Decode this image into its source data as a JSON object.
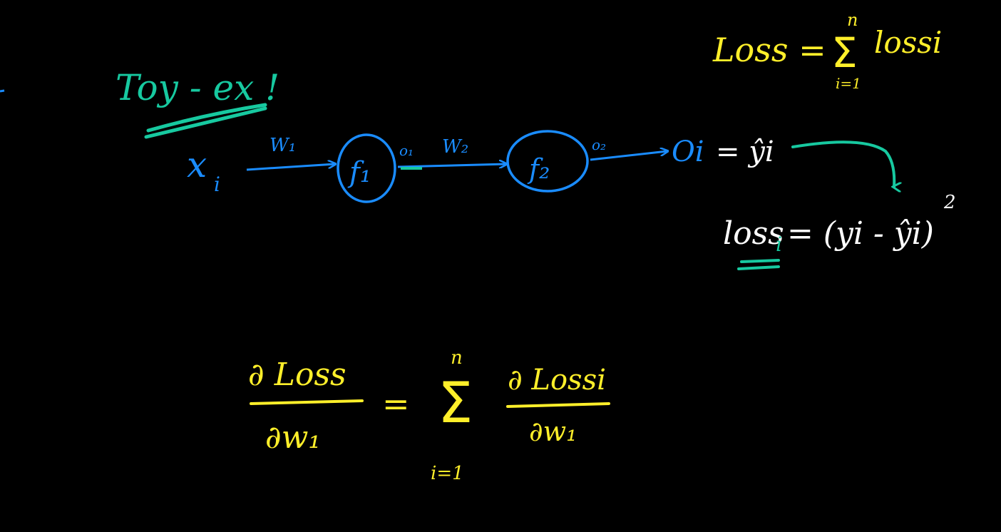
{
  "colors": {
    "background": "#000000",
    "blue": "#1a8cff",
    "yellow": "#ffef2a",
    "teal": "#17c9a0",
    "white": "#ffffff"
  },
  "heading": "Toy - ex !",
  "network": {
    "input": "x",
    "input_sub": "i",
    "weight_1": "W₁",
    "weight_2": "W₂",
    "node_1": "f₁",
    "node_2": "f₂",
    "out_1": "o₁",
    "out_2": "o₂",
    "output": "Oi",
    "output_eq": "= ŷi"
  },
  "loss_total": {
    "lhs": "Loss =",
    "sigma_top": "n",
    "sigma_bottom": "i=1",
    "term": "lossi"
  },
  "loss_i": {
    "lhs": "loss",
    "lhs_sub": "i",
    "rhs": "= (yi - ŷi)",
    "power": "2"
  },
  "derivative": {
    "lhs_num": "∂ Loss",
    "lhs_den": "∂w₁",
    "equals": "=",
    "sigma_top": "n",
    "sigma_bottom": "i=1",
    "rhs_num": "∂ Lossi",
    "rhs_den": "∂w₁"
  }
}
